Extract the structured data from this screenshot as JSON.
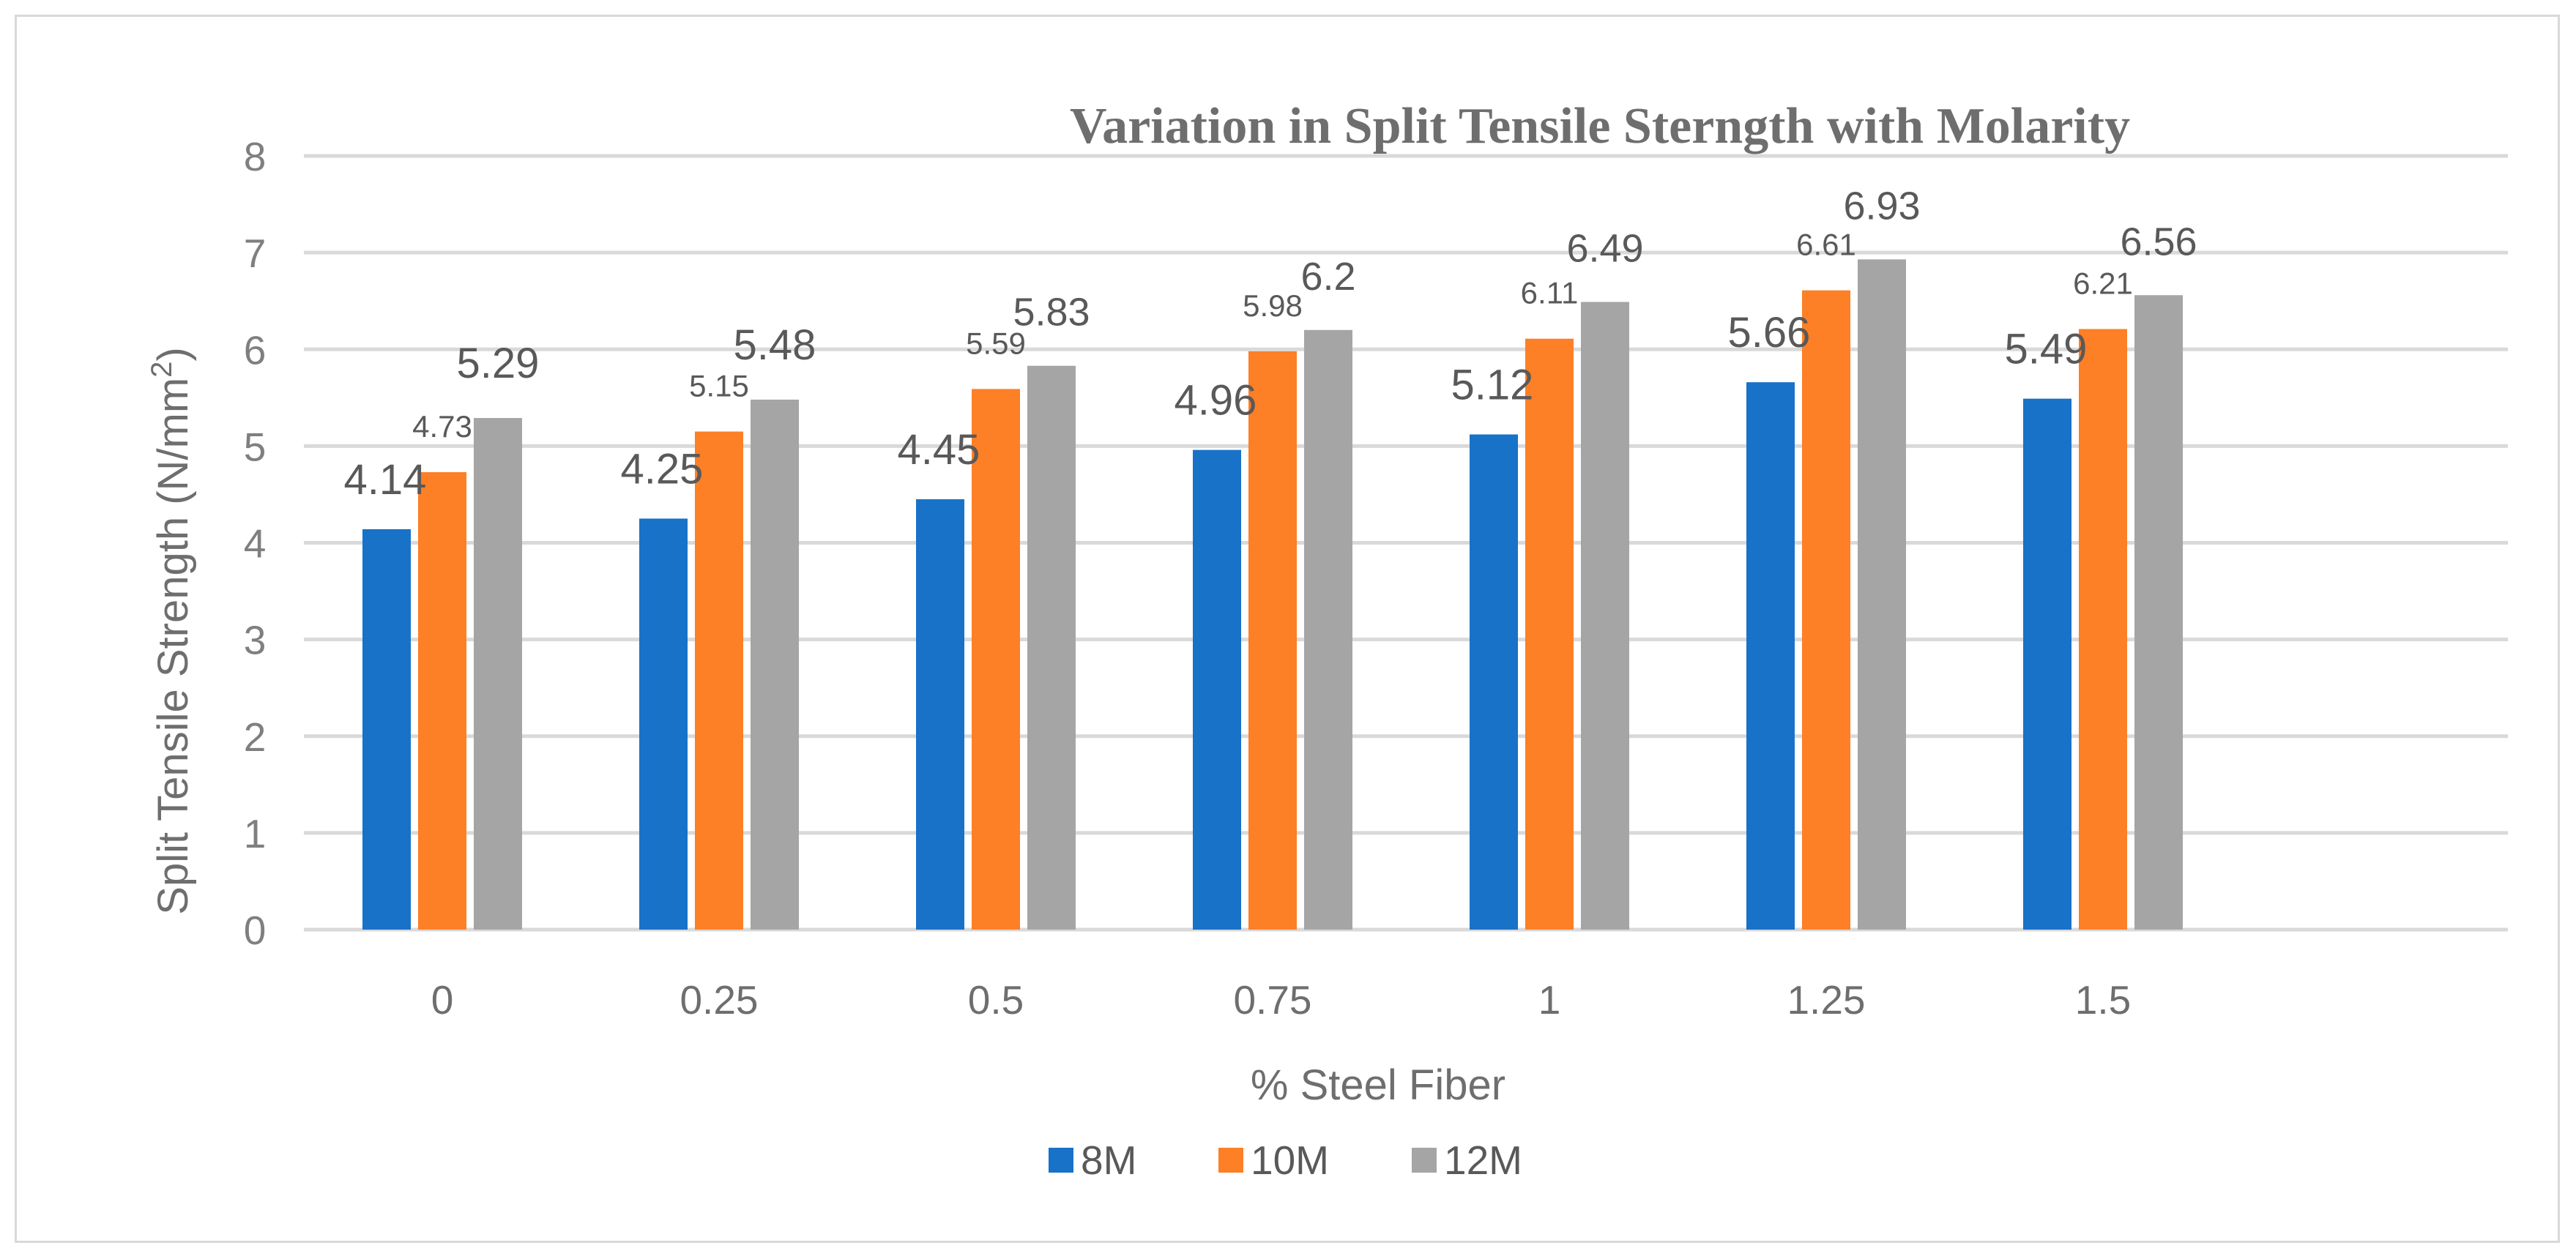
{
  "chart_data": {
    "type": "bar",
    "title": "Variation in Split Tensile Sterngth with Molarity",
    "xlabel": "% Steel Fiber",
    "ylabel": "Split Tensile Strength (N/mm²)",
    "ylabel_main": "Split Tensile Strength (N/mm",
    "ylabel_sup": "2",
    "ylabel_close": ")",
    "ylim": [
      0,
      8
    ],
    "yticks": [
      "0",
      "1",
      "2",
      "3",
      "4",
      "5",
      "6",
      "7",
      "8"
    ],
    "categories": [
      "0",
      "0.25",
      "0.5",
      "0.75",
      "1",
      "1.25",
      "1.5"
    ],
    "series": [
      {
        "name": "8M",
        "color": "#1872c8",
        "values": [
          4.14,
          4.25,
          4.45,
          4.96,
          5.12,
          5.66,
          5.49
        ],
        "labels": [
          "4.14",
          "4.25",
          "4.45",
          "4.96",
          "5.12",
          "5.66",
          "5.49"
        ]
      },
      {
        "name": "10M",
        "color": "#fd7f26",
        "values": [
          4.73,
          5.15,
          5.59,
          5.98,
          6.11,
          6.61,
          6.21
        ],
        "labels": [
          "4.73",
          "5.15",
          "5.59",
          "5.98",
          "6.11",
          "6.61",
          "6.21"
        ]
      },
      {
        "name": "12M",
        "color": "#a5a5a5",
        "values": [
          5.29,
          5.48,
          5.83,
          6.2,
          6.49,
          6.93,
          6.56
        ],
        "labels": [
          "5.29",
          "5.48",
          "5.83",
          "6.2",
          "6.49",
          "6.93",
          "6.56"
        ]
      }
    ],
    "grid": true,
    "legend": "bottom-center"
  }
}
